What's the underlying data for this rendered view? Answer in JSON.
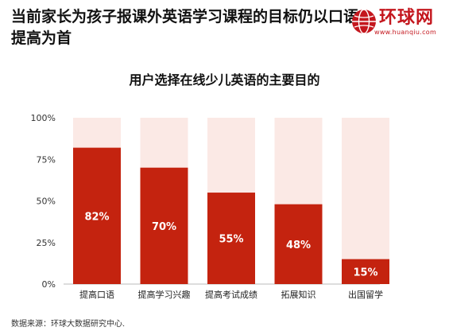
{
  "header": {
    "headline": "当前家长为孩子报课外英语学习课程的目标仍以口语提高为首",
    "logo_name": "环球网",
    "logo_url": "www.huanqiu.com"
  },
  "footer": {
    "source": "数据来源：环球大数据研究中心."
  },
  "colors": {
    "bar": "#c4230f",
    "background_bar": "#fbe9e5",
    "brand": "#c4171e"
  },
  "chart_data": {
    "type": "bar",
    "title": "用户选择在线少儿英语的主要目的",
    "categories": [
      "提高口语",
      "提高学习兴趣",
      "提高考试成绩",
      "拓展知识",
      "出国留学"
    ],
    "values": [
      82,
      70,
      55,
      48,
      15
    ],
    "data_labels": [
      "82%",
      "70%",
      "55%",
      "48%",
      "15%"
    ],
    "ylim": [
      0,
      100
    ],
    "yticks": [
      0,
      25,
      50,
      75,
      100
    ],
    "ytick_labels": [
      "0%",
      "25%",
      "50%",
      "75%",
      "100%"
    ],
    "grid": false,
    "legend": "none"
  }
}
